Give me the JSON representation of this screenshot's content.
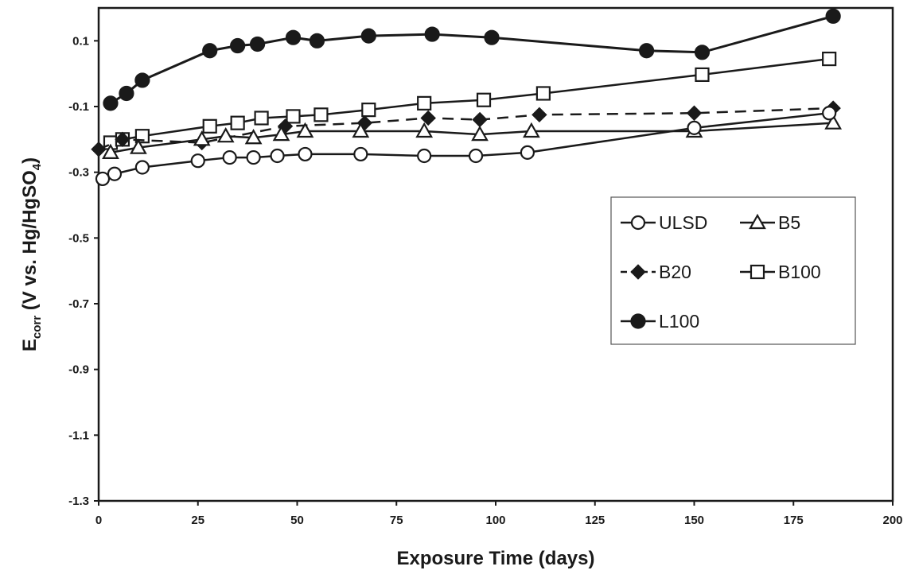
{
  "chart_data": {
    "type": "line",
    "xlabel": "Exposure Time (days)",
    "ylabel_main": "E",
    "ylabel_sub": "corr",
    "ylabel_rest_a": " (V vs. Hg/HgSO",
    "ylabel_rest_sub": "4",
    "ylabel_rest_b": ")",
    "xlim": [
      0,
      200
    ],
    "ylim": [
      -1.3,
      0.2
    ],
    "x_ticks": [
      0,
      25,
      50,
      75,
      100,
      125,
      150,
      175,
      200
    ],
    "x_tick_labels": [
      "0",
      "25",
      "50",
      "75",
      "100",
      "125",
      "150",
      "175",
      "200"
    ],
    "y_ticks": [
      0.1,
      -0.1,
      -0.3,
      -0.5,
      -0.7,
      -0.9,
      -1.1,
      -1.3
    ],
    "y_tick_labels": [
      "0.1",
      "-0.1",
      "-0.3",
      "-0.5",
      "-0.7",
      "-0.9",
      "-1.1",
      "-1.3"
    ],
    "grid": false,
    "legend_position": "right-middle",
    "series": [
      {
        "name": "L100",
        "marker": "circle-filled",
        "dash": false,
        "color": "#1a1a1a",
        "x": [
          3,
          7,
          11,
          28,
          35,
          40,
          49,
          55,
          68,
          84,
          99,
          138,
          152,
          185
        ],
        "y": [
          -0.09,
          -0.06,
          -0.02,
          0.07,
          0.085,
          0.09,
          0.11,
          0.1,
          0.115,
          0.12,
          0.11,
          0.07,
          0.065,
          0.175
        ]
      },
      {
        "name": "B100",
        "marker": "square-open",
        "dash": false,
        "color": "#1a1a1a",
        "x": [
          3,
          6,
          11,
          28,
          35,
          41,
          49,
          56,
          68,
          82,
          97,
          112,
          152,
          184
        ],
        "y": [
          -0.21,
          -0.2,
          -0.19,
          -0.16,
          -0.15,
          -0.135,
          -0.13,
          -0.125,
          -0.11,
          -0.09,
          -0.08,
          -0.06,
          -0.003,
          0.045
        ]
      },
      {
        "name": "B20",
        "marker": "diamond-filled",
        "dash": true,
        "color": "#1a1a1a",
        "x": [
          0,
          6,
          26,
          47,
          67,
          83,
          96,
          111,
          150,
          185
        ],
        "y": [
          -0.23,
          -0.2,
          -0.21,
          -0.16,
          -0.15,
          -0.135,
          -0.14,
          -0.125,
          -0.12,
          -0.105
        ]
      },
      {
        "name": "B5",
        "marker": "triangle-open",
        "dash": false,
        "color": "#1a1a1a",
        "x": [
          3,
          10,
          26,
          32,
          39,
          46,
          52,
          66,
          82,
          96,
          109,
          150,
          185
        ],
        "y": [
          -0.24,
          -0.225,
          -0.2,
          -0.19,
          -0.195,
          -0.185,
          -0.175,
          -0.175,
          -0.175,
          -0.185,
          -0.175,
          -0.175,
          -0.15
        ]
      },
      {
        "name": "ULSD",
        "marker": "circle-open",
        "dash": false,
        "color": "#1a1a1a",
        "x": [
          1,
          4,
          11,
          25,
          33,
          39,
          45,
          52,
          66,
          82,
          95,
          108,
          150,
          184
        ],
        "y": [
          -0.32,
          -0.305,
          -0.285,
          -0.265,
          -0.255,
          -0.255,
          -0.25,
          -0.245,
          -0.245,
          -0.25,
          -0.25,
          -0.24,
          -0.165,
          -0.12
        ]
      }
    ],
    "legend": {
      "rows": [
        [
          "ULSD",
          "B5"
        ],
        [
          "B20",
          "B100"
        ],
        [
          "L100"
        ]
      ]
    }
  }
}
